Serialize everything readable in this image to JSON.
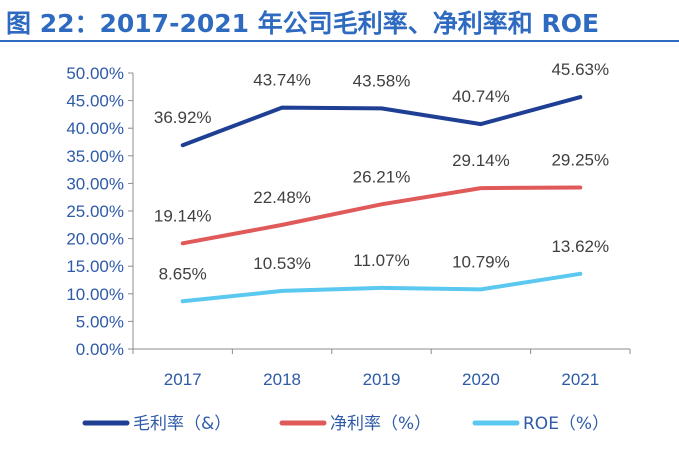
{
  "chart_data": {
    "type": "line",
    "title": "图 22：2017-2021 年公司毛利率、净利率和 ROE",
    "categories": [
      "2017",
      "2018",
      "2019",
      "2020",
      "2021"
    ],
    "ylim": [
      0,
      50
    ],
    "yticks": [
      "0.00%",
      "5.00%",
      "10.00%",
      "15.00%",
      "20.00%",
      "25.00%",
      "30.00%",
      "35.00%",
      "40.00%",
      "45.00%",
      "50.00%"
    ],
    "grid": false,
    "legend_position": "bottom",
    "series": [
      {
        "name": "毛利率（&）",
        "color": "#1f3f95",
        "values": [
          36.92,
          43.74,
          43.58,
          40.74,
          45.63
        ],
        "labels": [
          "36.92%",
          "43.74%",
          "43.58%",
          "40.74%",
          "45.63%"
        ]
      },
      {
        "name": "净利率（%）",
        "color": "#e05a5a",
        "values": [
          19.14,
          22.48,
          26.21,
          29.14,
          29.25
        ],
        "labels": [
          "19.14%",
          "22.48%",
          "26.21%",
          "29.14%",
          "29.25%"
        ]
      },
      {
        "name": "ROE（%）",
        "color": "#5bc8f0",
        "values": [
          8.65,
          10.53,
          11.07,
          10.79,
          13.62
        ],
        "labels": [
          "8.65%",
          "10.53%",
          "11.07%",
          "10.79%",
          "13.62%"
        ]
      }
    ]
  }
}
